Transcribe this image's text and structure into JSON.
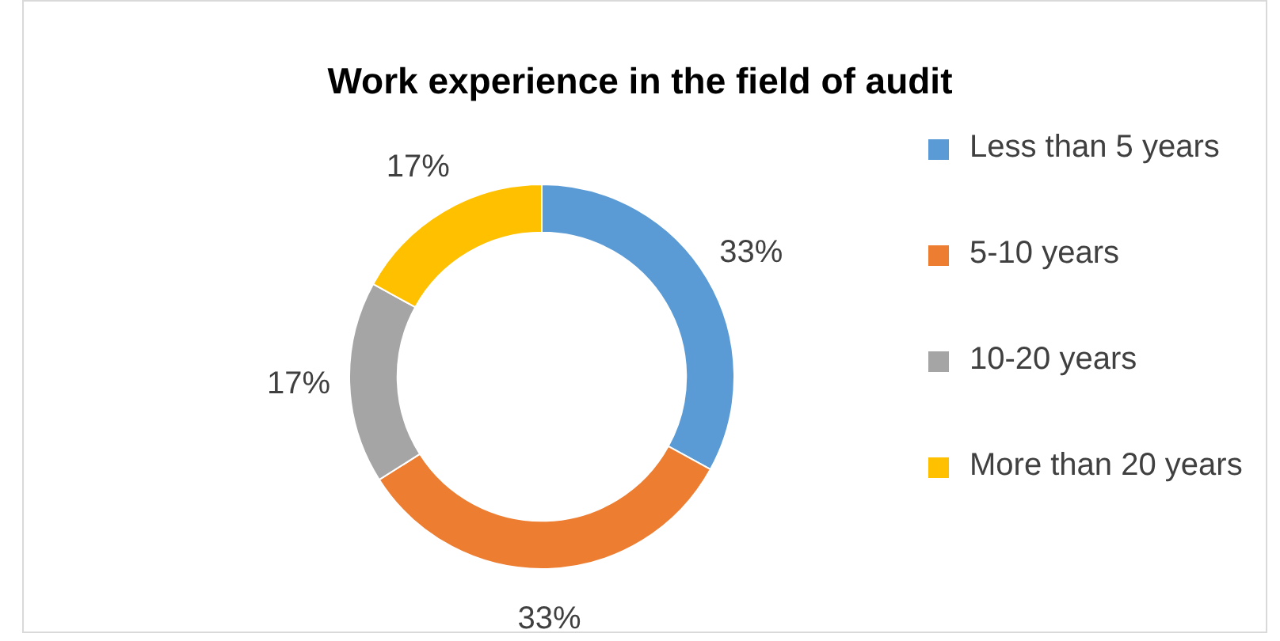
{
  "chart_data": {
    "type": "donut",
    "title": "Work experience in the field of audit",
    "categories": [
      "Less than 5 years",
      "5-10 years",
      "10-20 years",
      "More than 20 years"
    ],
    "values": [
      33,
      33,
      17,
      17
    ],
    "colors": [
      "#5b9bd5",
      "#ed7d31",
      "#a5a5a5",
      "#ffc000"
    ],
    "value_labels": [
      "33%",
      "33%",
      "17%",
      "17%"
    ],
    "legend": "right"
  }
}
